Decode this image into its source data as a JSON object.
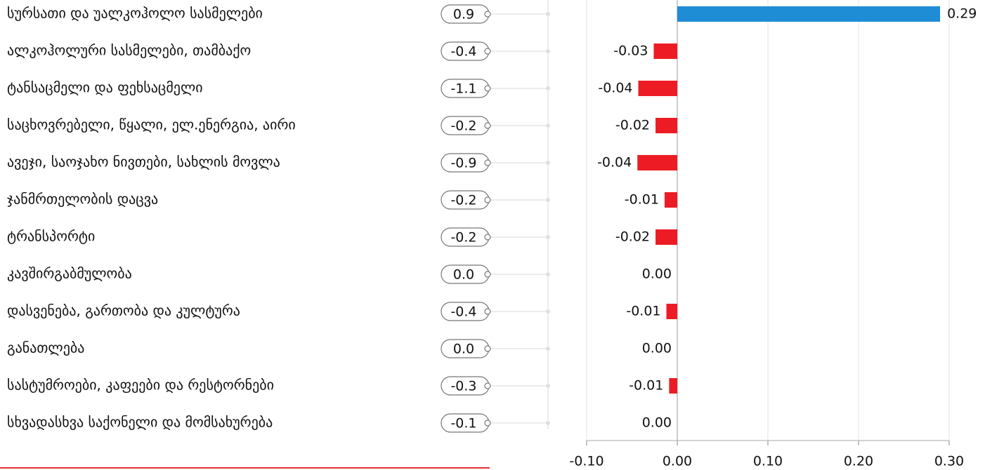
{
  "chart_data": {
    "type": "bar",
    "categories": [
      "სურსათი და უალკოჰოლო სასმელები",
      "ალკოჰოლური სასმელები, თამბაქო",
      "ტანსაცმელი და ფეხსაცმელი",
      "საცხოვრებელი, წყალი, ელ.ენერგია, აირი",
      "ავეჯი, საოჯახო ნივთები, სახლის მოვლა",
      "ჯანმრთელობის დაცვა",
      "ტრანსპორტი",
      "კავშირგაბმულობა",
      "დასვენება, გართობა და კულტურა",
      "განათლება",
      "სასტუმროები, კაფეები და რესტორნები",
      "სხვადასხვა საქონელი და მომსახურება"
    ],
    "changes": [
      0.9,
      -0.4,
      -1.1,
      -0.2,
      -0.9,
      -0.2,
      -0.2,
      0,
      -0.4,
      0,
      -0.3,
      -0.1
    ],
    "change_labels": [
      "0.9",
      "-0.4",
      "-1.1",
      "-0.2",
      "-0.9",
      "-0.2",
      "-0.2",
      "0.0",
      "-0.4",
      "0.0",
      "-0.3",
      "-0.1"
    ],
    "values": [
      0.29,
      -0.026,
      -0.043,
      -0.024,
      -0.044,
      -0.014,
      -0.024,
      0,
      -0.012,
      0,
      -0.009,
      0
    ],
    "value_labels": [
      "0.29",
      "-0.03",
      "-0.04",
      "-0.02",
      "-0.04",
      "-0.01",
      "-0.02",
      "0.00",
      "-0.01",
      "0.00",
      "-0.01",
      "0.00"
    ],
    "positive_color": "#1f8dd6",
    "negative_color": "#ed1c24",
    "xlim": [
      -0.1,
      0.3
    ],
    "xticks": [
      {
        "value": -0.1,
        "label": "-0.10"
      },
      {
        "value": 0,
        "label": "0.00"
      },
      {
        "value": 0.1,
        "label": "0.10"
      },
      {
        "value": 0.2,
        "label": "0.20"
      },
      {
        "value": 0.3,
        "label": "0.30"
      }
    ],
    "grid": true
  }
}
